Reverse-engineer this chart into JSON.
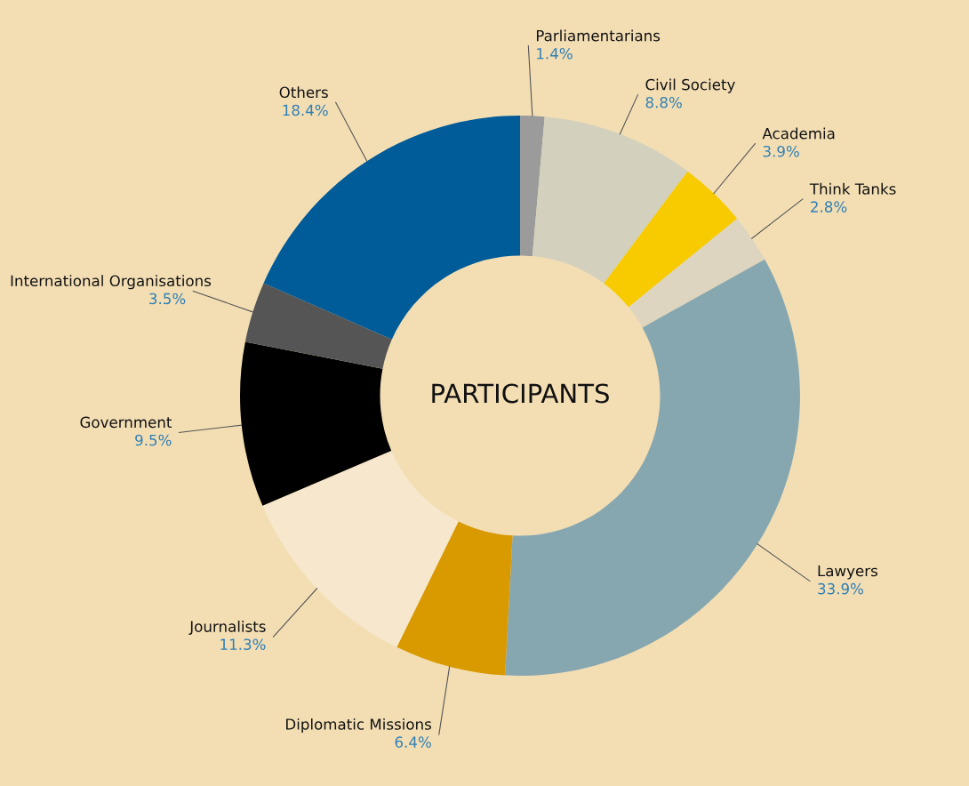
{
  "chart_data": {
    "type": "donut",
    "title": "PARTICIPANTS",
    "categories": [
      "Parliamentarians",
      "Civil Society",
      "Academia",
      "Think Tanks",
      "Lawyers",
      "Diplomatic Missions",
      "Journalists",
      "Government",
      "International Organisations",
      "Others"
    ],
    "values": [
      1.4,
      8.8,
      3.9,
      2.8,
      33.9,
      6.4,
      11.3,
      9.5,
      3.5,
      18.4
    ],
    "colors": [
      "#9b9b9b",
      "#d3d0bd",
      "#f7cb00",
      "#ddd5c0",
      "#87a7b0",
      "#d99a00",
      "#f6e7cd",
      "#000000",
      "#555555",
      "#005b99"
    ],
    "value_labels": [
      "1.4%",
      "8.8%",
      "3.9%",
      "2.8%",
      "33.9%",
      "6.4%",
      "11.3%",
      "9.5%",
      "3.5%",
      "18.4%"
    ]
  }
}
